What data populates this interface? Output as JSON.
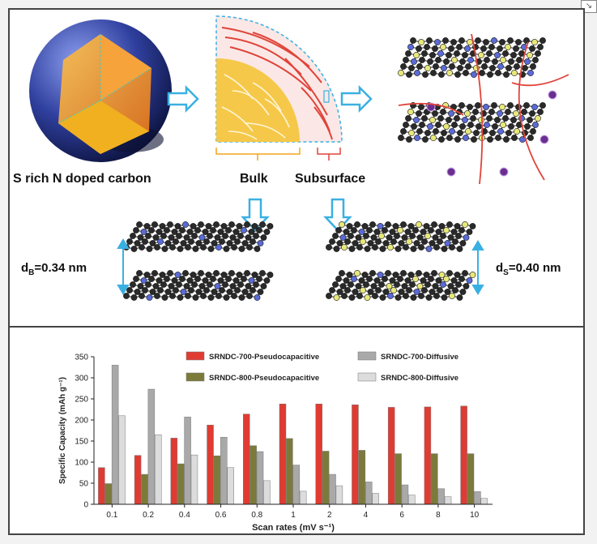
{
  "top": {
    "sphere_label": "S rich N doped carbon",
    "bulk_label": "Bulk",
    "subsurface_label": "Subsurface",
    "spacing_bulk_main": "d",
    "spacing_bulk_sub": "B",
    "spacing_bulk_value": "=0.34 nm",
    "spacing_sub_main": "d",
    "spacing_sub_sub": "S",
    "spacing_sub_value": "=0.40 nm"
  },
  "colors": {
    "arrow_blue": "#3ab0e2",
    "core_orange": "#f2a33a",
    "shell_blue": "#2f3f9e",
    "bulk_yellow": "#f3c13f",
    "sub_red": "#e0443a",
    "carbon": "#2a2a2a",
    "nitrogen": "#5a6ad6",
    "sulfur": "#e8e87a"
  },
  "chart_data": {
    "type": "bar",
    "ylabel": "Specific Capacity (mAh g⁻¹)",
    "xlabel": "Scan rates (mV s⁻¹)",
    "ylim": [
      0,
      350
    ],
    "yticks": [
      "0",
      "50",
      "100",
      "150",
      "200",
      "250",
      "300",
      "350"
    ],
    "categories": [
      "0.1",
      "0.2",
      "0.4",
      "0.6",
      "0.8",
      "1",
      "2",
      "4",
      "6",
      "8",
      "10"
    ],
    "legend_position": "top",
    "series": [
      {
        "name": "SRNDC-700-Pseudocapacitive",
        "color": "#e03b32",
        "values": [
          87,
          116,
          157,
          188,
          214,
          238,
          238,
          236,
          230,
          231,
          233
        ]
      },
      {
        "name": "SRNDC-800-Pseudocapacitive",
        "color": "#7b7a3a",
        "values": [
          49,
          71,
          96,
          115,
          139,
          156,
          126,
          128,
          120,
          120,
          120
        ]
      },
      {
        "name": "SRNDC-700-Diffusive",
        "color": "#a9a9a9",
        "values": [
          330,
          273,
          207,
          159,
          125,
          93,
          71,
          53,
          46,
          37,
          30
        ]
      },
      {
        "name": "SRNDC-800-Diffusive",
        "color": "#dcdcdc",
        "values": [
          210,
          165,
          117,
          87,
          56,
          31,
          44,
          26,
          22,
          18,
          14
        ]
      }
    ]
  }
}
